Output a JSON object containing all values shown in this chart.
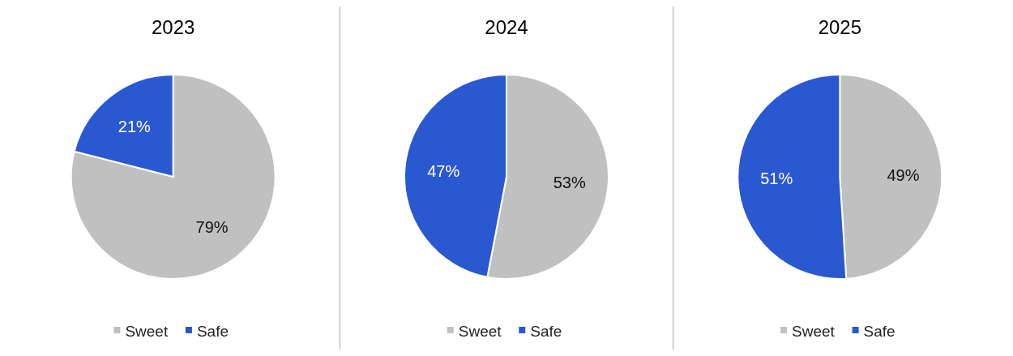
{
  "chart_data": [
    {
      "type": "pie",
      "title": "2023",
      "categories": [
        "Sweet",
        "Safe"
      ],
      "values": [
        79,
        21
      ],
      "colors": [
        "#c0c0c0",
        "#2a58d0"
      ],
      "value_labels": [
        "79%",
        "21%"
      ],
      "legend": "bottom"
    },
    {
      "type": "pie",
      "title": "2024",
      "categories": [
        "Sweet",
        "Safe"
      ],
      "values": [
        53,
        47
      ],
      "colors": [
        "#c0c0c0",
        "#2a58d0"
      ],
      "value_labels": [
        "53%",
        "47%"
      ],
      "legend": "bottom"
    },
    {
      "type": "pie",
      "title": "2025",
      "categories": [
        "Sweet",
        "Safe"
      ],
      "values": [
        49,
        51
      ],
      "colors": [
        "#c0c0c0",
        "#2a58d0"
      ],
      "value_labels": [
        "49%",
        "51%"
      ],
      "legend": "bottom"
    }
  ]
}
